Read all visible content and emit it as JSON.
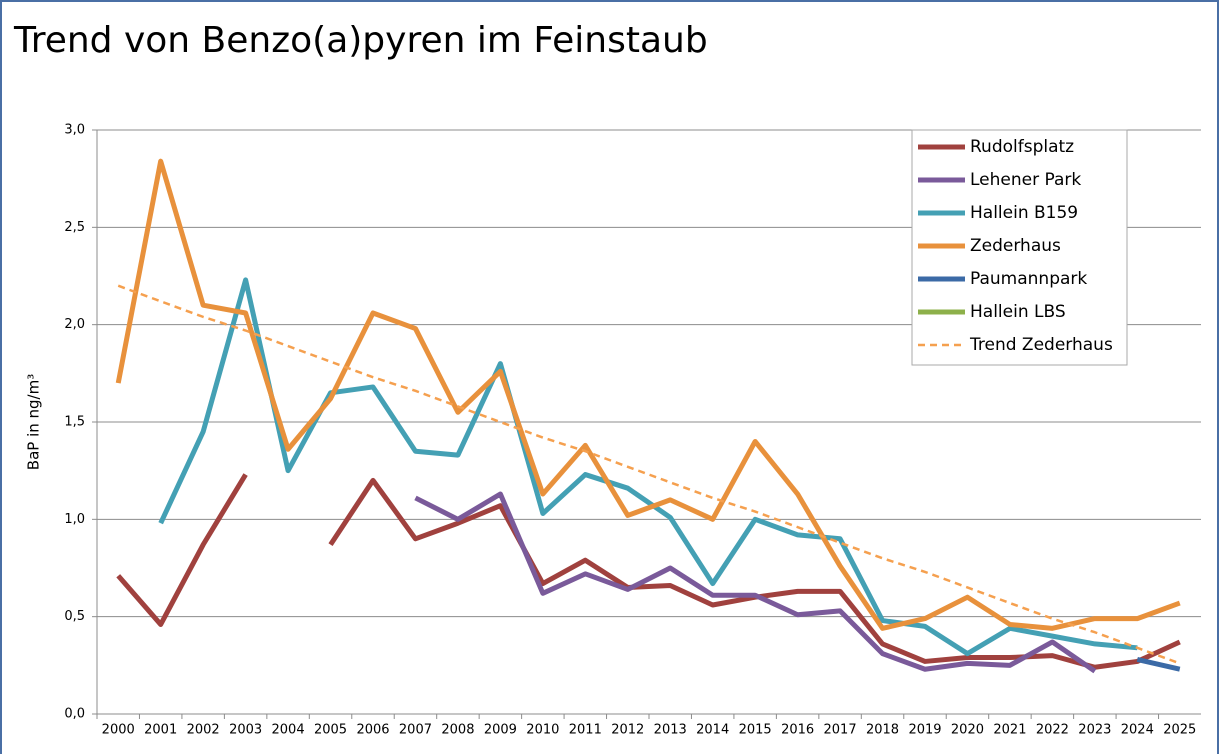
{
  "chart_data": {
    "type": "line",
    "title": "Trend von Benzo(a)pyren im Feinstaub",
    "y_label": "BaP in ng/m³",
    "categories": [
      "2000",
      "2001",
      "2002",
      "2003",
      "2004",
      "2005",
      "2006",
      "2007",
      "2008",
      "2009",
      "2010",
      "2011",
      "2012",
      "2013",
      "2014",
      "2015",
      "2016",
      "2017",
      "2018",
      "2019",
      "2020",
      "2021",
      "2022",
      "2023",
      "2024",
      "2025"
    ],
    "series": [
      {
        "name": "Rudolfsplatz",
        "color": "#a0413e",
        "values": [
          0.71,
          0.46,
          0.87,
          1.23,
          null,
          0.87,
          1.2,
          0.9,
          0.98,
          1.07,
          0.67,
          0.79,
          0.65,
          0.66,
          0.56,
          0.6,
          0.63,
          0.63,
          0.36,
          0.27,
          0.29,
          0.29,
          0.3,
          0.24,
          0.27,
          0.37
        ]
      },
      {
        "name": "Lehener Park",
        "color": "#7a5a9a",
        "values": [
          null,
          null,
          null,
          null,
          null,
          null,
          null,
          1.11,
          1.0,
          1.13,
          0.62,
          0.72,
          0.64,
          0.75,
          0.61,
          0.61,
          0.51,
          0.53,
          0.31,
          0.23,
          0.26,
          0.25,
          0.37,
          0.22,
          null,
          null
        ]
      },
      {
        "name": "Hallein B159",
        "color": "#44a0b4",
        "values": [
          null,
          0.98,
          1.45,
          2.23,
          1.25,
          1.65,
          1.68,
          1.35,
          1.33,
          1.8,
          1.03,
          1.23,
          1.16,
          1.01,
          0.67,
          1.0,
          0.92,
          0.9,
          0.48,
          0.45,
          0.31,
          0.44,
          0.4,
          0.36,
          0.34,
          null
        ]
      },
      {
        "name": "Zederhaus",
        "color": "#e8913c",
        "values": [
          1.7,
          2.84,
          2.1,
          2.06,
          1.36,
          1.62,
          2.06,
          1.98,
          1.55,
          1.76,
          1.13,
          1.38,
          1.02,
          1.1,
          1.0,
          1.4,
          1.13,
          0.76,
          0.44,
          0.49,
          0.6,
          0.46,
          0.44,
          0.49,
          0.49,
          0.57
        ]
      },
      {
        "name": "Paumannpark",
        "color": "#3b6aa6",
        "values": [
          null,
          null,
          null,
          null,
          null,
          null,
          null,
          null,
          null,
          null,
          null,
          null,
          null,
          null,
          null,
          null,
          null,
          null,
          null,
          null,
          null,
          null,
          null,
          null,
          0.28,
          0.23
        ]
      },
      {
        "name": "Hallein LBS",
        "color": "#8db04a",
        "values": [
          null,
          null,
          null,
          null,
          null,
          null,
          null,
          null,
          null,
          null,
          null,
          null,
          null,
          null,
          null,
          null,
          null,
          null,
          null,
          null,
          null,
          null,
          null,
          null,
          null,
          null
        ]
      },
      {
        "name": "Trend Zederhaus",
        "color": "#f5a04f",
        "dashed": true,
        "values": [
          2.2,
          2.12,
          2.04,
          1.97,
          1.89,
          1.81,
          1.73,
          1.66,
          1.58,
          1.5,
          1.42,
          1.35,
          1.27,
          1.19,
          1.11,
          1.04,
          0.96,
          0.88,
          0.8,
          0.73,
          0.65,
          0.57,
          0.49,
          0.42,
          0.34,
          0.26
        ]
      }
    ],
    "ylim": [
      0,
      3
    ],
    "yticks": [
      {
        "value": 0,
        "label": "0,0"
      },
      {
        "value": 0.5,
        "label": "0,5"
      },
      {
        "value": 1,
        "label": "1,0"
      },
      {
        "value": 1.5,
        "label": "1,5"
      },
      {
        "value": 2,
        "label": "2,0"
      },
      {
        "value": 2.5,
        "label": "2,5"
      },
      {
        "value": 3,
        "label": "3,0"
      }
    ],
    "grid": true,
    "legend": "upper right"
  }
}
